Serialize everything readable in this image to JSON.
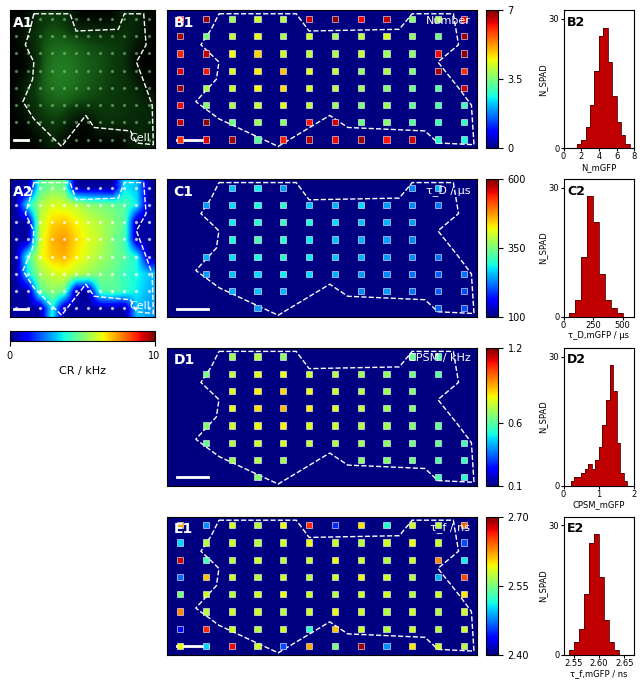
{
  "chart_data": [
    {
      "type": "image",
      "panel": "A1",
      "label": "Cell"
    },
    {
      "type": "heatmap",
      "panel": "A2",
      "label": "Cell",
      "cells": [
        [
          0.3,
          0.3,
          4.5,
          5.0,
          4.8,
          0.3,
          0.3,
          0.3,
          0.3,
          3.5,
          3.2,
          0.3
        ],
        [
          0.3,
          3.8,
          5.5,
          6.2,
          6.0,
          5.8,
          5.2,
          5.0,
          4.8,
          4.5,
          3.6,
          0.3
        ],
        [
          0.3,
          0.3,
          5.8,
          6.8,
          7.0,
          6.5,
          6.0,
          5.6,
          5.2,
          4.6,
          0.3,
          0.3
        ],
        [
          0.3,
          0.3,
          6.0,
          7.2,
          7.5,
          6.8,
          6.2,
          5.8,
          5.0,
          4.4,
          0.3,
          0.3
        ],
        [
          0.3,
          4.2,
          6.2,
          7.0,
          7.2,
          6.6,
          6.0,
          5.5,
          5.0,
          4.5,
          3.8,
          0.3
        ],
        [
          0.3,
          3.6,
          5.4,
          6.0,
          6.2,
          5.8,
          5.4,
          5.0,
          4.8,
          4.2,
          3.8,
          3.2
        ],
        [
          0.3,
          0.3,
          4.6,
          5.2,
          4.8,
          0.3,
          0.3,
          4.4,
          4.6,
          4.2,
          3.6,
          3.0
        ],
        [
          0.3,
          0.3,
          0.3,
          3.8,
          0.3,
          0.3,
          0.3,
          0.3,
          0.3,
          0.3,
          3.2,
          2.8
        ]
      ],
      "colorbar": {
        "range": [
          0,
          10
        ],
        "ticks": [
          0,
          10
        ],
        "label": "CR / kHz"
      }
    },
    {
      "type": "heatmap",
      "panel": "B1",
      "label": "Number",
      "cells": [
        [
          6.2,
          6.8,
          3.8,
          4.2,
          4.0,
          6.5,
          6.9,
          6.3,
          6.6,
          3.6,
          3.9,
          6.4
        ],
        [
          6.7,
          3.5,
          4.1,
          4.4,
          3.9,
          4.2,
          3.8,
          4.0,
          4.3,
          3.7,
          3.4,
          6.8
        ],
        [
          6.1,
          6.6,
          4.5,
          4.8,
          4.2,
          4.0,
          3.9,
          4.1,
          3.8,
          3.6,
          6.3,
          6.9
        ],
        [
          6.4,
          6.2,
          4.3,
          4.6,
          4.9,
          4.4,
          4.1,
          3.7,
          3.9,
          3.5,
          6.7,
          6.0
        ],
        [
          6.8,
          3.9,
          4.2,
          4.5,
          4.7,
          4.3,
          4.0,
          3.8,
          3.6,
          3.4,
          3.2,
          6.5
        ],
        [
          6.3,
          3.6,
          3.9,
          4.1,
          4.4,
          4.0,
          3.7,
          3.5,
          3.8,
          3.3,
          3.1,
          3.0
        ],
        [
          6.6,
          6.9,
          3.4,
          3.8,
          3.6,
          6.2,
          6.5,
          3.4,
          3.6,
          3.2,
          3.0,
          2.9
        ],
        [
          6.0,
          6.4,
          6.8,
          3.2,
          6.1,
          6.7,
          6.3,
          6.8,
          6.2,
          6.5,
          2.8,
          2.7
        ]
      ],
      "colorbar": {
        "range": [
          0,
          7
        ],
        "ticks": [
          0,
          3.5,
          7
        ]
      }
    },
    {
      "type": "heatmap",
      "panel": "C1",
      "label": "τ_D / µs",
      "cells": [
        [
          null,
          null,
          260,
          280,
          240,
          null,
          null,
          null,
          null,
          230,
          250,
          null
        ],
        [
          null,
          240,
          270,
          290,
          300,
          260,
          250,
          270,
          240,
          230,
          220,
          null
        ],
        [
          null,
          null,
          280,
          300,
          310,
          290,
          270,
          260,
          250,
          240,
          null,
          null
        ],
        [
          null,
          null,
          290,
          320,
          300,
          280,
          260,
          250,
          240,
          230,
          null,
          null
        ],
        [
          null,
          250,
          270,
          290,
          300,
          280,
          260,
          250,
          240,
          230,
          220,
          null
        ],
        [
          null,
          240,
          260,
          270,
          280,
          270,
          250,
          240,
          230,
          220,
          210,
          220
        ],
        [
          null,
          null,
          250,
          260,
          250,
          null,
          null,
          230,
          240,
          220,
          210,
          200
        ],
        [
          null,
          null,
          null,
          240,
          null,
          null,
          null,
          null,
          null,
          null,
          210,
          200
        ]
      ],
      "colorbar": {
        "range": [
          100,
          600
        ],
        "ticks": [
          100,
          350,
          600
        ]
      }
    },
    {
      "type": "heatmap",
      "panel": "D1",
      "label": "CPSM / kHz",
      "cells": [
        [
          null,
          null,
          0.7,
          0.72,
          0.68,
          null,
          null,
          null,
          null,
          0.62,
          0.6,
          null
        ],
        [
          null,
          0.64,
          0.74,
          0.78,
          0.8,
          0.76,
          0.72,
          0.7,
          0.68,
          0.64,
          0.6,
          null
        ],
        [
          null,
          null,
          0.78,
          0.82,
          0.85,
          0.8,
          0.76,
          0.72,
          0.7,
          0.66,
          null,
          null
        ],
        [
          null,
          null,
          0.8,
          0.84,
          0.88,
          0.82,
          0.78,
          0.74,
          0.7,
          0.66,
          null,
          null
        ],
        [
          null,
          0.66,
          0.76,
          0.8,
          0.82,
          0.78,
          0.76,
          0.72,
          0.7,
          0.66,
          0.62,
          null
        ],
        [
          null,
          0.62,
          0.72,
          0.76,
          0.78,
          0.74,
          0.72,
          0.7,
          0.68,
          0.64,
          0.62,
          0.58
        ],
        [
          null,
          null,
          0.7,
          0.72,
          0.7,
          null,
          null,
          0.68,
          0.66,
          0.64,
          0.6,
          0.56
        ],
        [
          null,
          null,
          null,
          0.66,
          null,
          null,
          null,
          null,
          null,
          null,
          0.58,
          0.54
        ]
      ],
      "colorbar": {
        "range": [
          0.1,
          1.2
        ],
        "ticks": [
          0.1,
          0.6,
          1.2
        ]
      }
    },
    {
      "type": "heatmap",
      "panel": "E1",
      "label": "τ_f / ns",
      "cells": [
        [
          2.62,
          2.48,
          2.58,
          2.57,
          2.59,
          2.66,
          2.45,
          2.6,
          2.52,
          2.58,
          2.57,
          2.64
        ],
        [
          2.5,
          2.57,
          2.58,
          2.57,
          2.58,
          2.59,
          2.58,
          2.57,
          2.58,
          2.59,
          2.58,
          2.46
        ],
        [
          2.68,
          2.53,
          2.57,
          2.58,
          2.57,
          2.58,
          2.59,
          2.58,
          2.57,
          2.58,
          2.63,
          2.51
        ],
        [
          2.47,
          2.61,
          2.58,
          2.57,
          2.58,
          2.57,
          2.58,
          2.59,
          2.58,
          2.57,
          2.49,
          2.65
        ],
        [
          2.55,
          2.58,
          2.57,
          2.58,
          2.59,
          2.58,
          2.57,
          2.58,
          2.58,
          2.57,
          2.58,
          2.6
        ],
        [
          2.63,
          2.57,
          2.58,
          2.58,
          2.57,
          2.58,
          2.59,
          2.58,
          2.57,
          2.58,
          2.57,
          2.58
        ],
        [
          2.44,
          2.66,
          2.58,
          2.57,
          2.58,
          2.52,
          2.61,
          2.58,
          2.57,
          2.58,
          2.57,
          2.58
        ],
        [
          2.59,
          2.5,
          2.67,
          2.58,
          2.46,
          2.62,
          2.55,
          2.69,
          2.48,
          2.6,
          2.58,
          2.57
        ]
      ],
      "colorbar": {
        "range": [
          2.4,
          2.7
        ],
        "ticks": [
          {
            "value": 2.4,
            "label": "2.40"
          },
          2.55,
          {
            "value": 2.7,
            "label": "2.70"
          }
        ]
      }
    },
    {
      "type": "histogram",
      "panel": "B2",
      "xlabel": "N_mGFP",
      "ylabel": "N_SPAD",
      "color": "#c00000",
      "bins": [
        0,
        0.5,
        1,
        1.5,
        2,
        2.5,
        3,
        3.5,
        4,
        4.5,
        5,
        5.5,
        6,
        6.5,
        7,
        7.5,
        8
      ],
      "counts": [
        0,
        0,
        0,
        1,
        2,
        5,
        10,
        18,
        26,
        28,
        20,
        12,
        6,
        3,
        1,
        0
      ],
      "xlim": [
        0,
        8
      ],
      "xticks": [
        0,
        2,
        4,
        6,
        8
      ],
      "ylim": [
        0,
        32
      ],
      "yticks": [
        0,
        30
      ]
    },
    {
      "type": "histogram",
      "panel": "C2",
      "xlabel": "τ_D,mGFP / µs",
      "ylabel": "N_SPAD",
      "color": "#c00000",
      "bins": [
        0,
        50,
        100,
        150,
        200,
        250,
        300,
        350,
        400,
        450,
        500,
        550,
        600
      ],
      "counts": [
        0,
        1,
        4,
        14,
        28,
        22,
        10,
        4,
        2,
        1,
        0,
        0
      ],
      "xlim": [
        0,
        600
      ],
      "xticks": [
        0,
        250,
        500
      ],
      "ylim": [
        0,
        32
      ],
      "yticks": [
        0,
        30
      ]
    },
    {
      "type": "histogram",
      "panel": "D2",
      "xlabel": "CPSM_mGFP",
      "ylabel": "N_SPAD",
      "color": "#c00000",
      "bins": [
        0,
        0.1,
        0.2,
        0.3,
        0.4,
        0.5,
        0.6,
        0.7,
        0.8,
        0.9,
        1.0,
        1.1,
        1.2,
        1.3,
        1.4,
        1.5,
        1.6,
        1.7,
        1.8,
        1.9,
        2.0
      ],
      "counts": [
        0,
        0,
        1,
        2,
        2,
        3,
        4,
        5,
        4,
        6,
        9,
        14,
        20,
        28,
        22,
        10,
        3,
        1,
        0,
        0
      ],
      "xlim": [
        0,
        2
      ],
      "xticks": [
        0,
        1,
        2
      ],
      "ylim": [
        0,
        32
      ],
      "yticks": [
        0,
        30
      ]
    },
    {
      "type": "histogram",
      "panel": "E2",
      "xlabel": "τ_f,mGFP / ns",
      "ylabel": "N_SPAD",
      "color": "#c00000",
      "bins": [
        2.53,
        2.54,
        2.55,
        2.56,
        2.57,
        2.58,
        2.59,
        2.6,
        2.61,
        2.62,
        2.63,
        2.64,
        2.65,
        2.66,
        2.67
      ],
      "counts": [
        0,
        1,
        3,
        6,
        14,
        26,
        28,
        18,
        8,
        3,
        1,
        0,
        0,
        0
      ],
      "xlim": [
        2.53,
        2.67
      ],
      "xticks": [
        2.55,
        {
          "value": 2.6,
          "label": "2.60"
        },
        2.65
      ],
      "ylim": [
        0,
        32
      ],
      "yticks": [
        0,
        30
      ]
    }
  ]
}
